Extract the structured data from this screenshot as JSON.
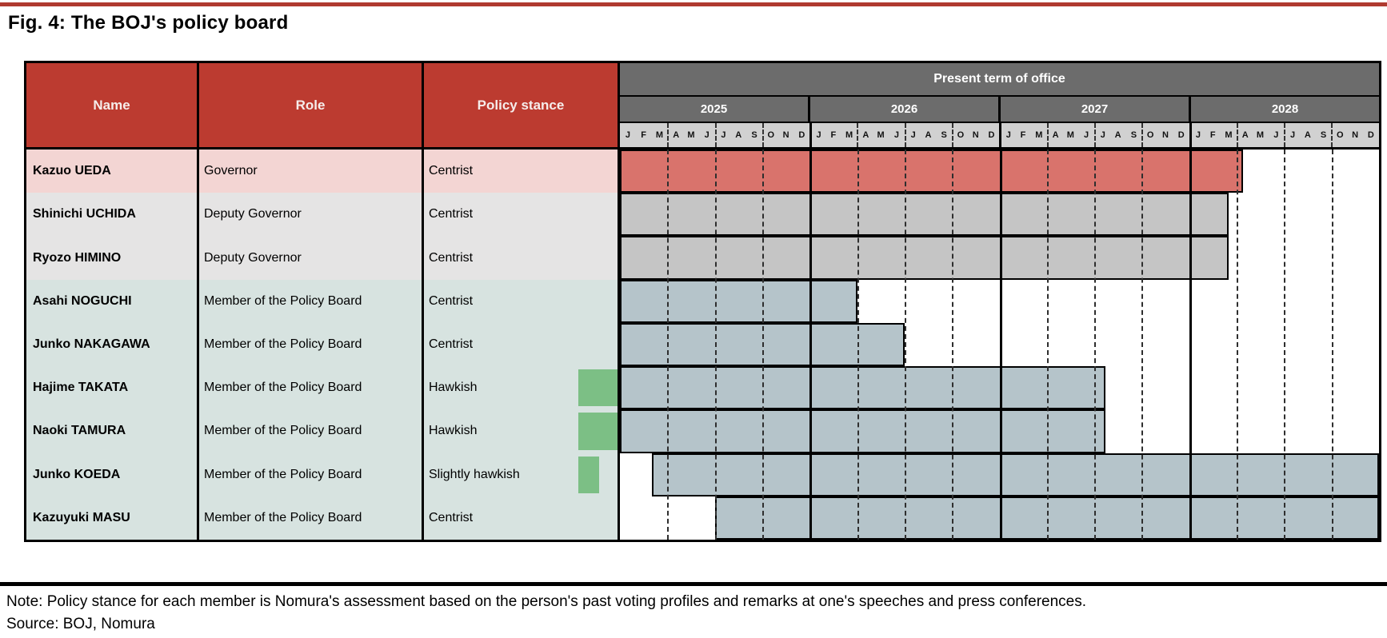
{
  "title": "Fig. 4: The BOJ's policy board",
  "header": {
    "name": "Name",
    "role": "Role",
    "stance": "Policy stance",
    "term": "Present term of office"
  },
  "years": [
    "2025",
    "2026",
    "2027",
    "2028"
  ],
  "month_letters": [
    "J",
    "F",
    "M",
    "A",
    "M",
    "J",
    "J",
    "A",
    "S",
    "O",
    "N",
    "D"
  ],
  "chart_data": {
    "type": "gantt",
    "title": "Present term of office",
    "x_unit": "month",
    "x_range": [
      "Jan 2025",
      "Dec 2028"
    ],
    "x_gridlines": "solid black at year boundaries, dashed at quarter boundaries",
    "rows": [
      {
        "name": "Kazuo UEDA",
        "role": "Governor",
        "stance": "Centrist",
        "bar": {
          "start_month": 0,
          "end_month": 39.4,
          "start_label": "Jan 2025",
          "end_label": "Apr 2028"
        },
        "row_tint": "pink",
        "bar_color": "red",
        "hawk_indicator": 0
      },
      {
        "name": "Shinichi UCHIDA",
        "role": "Deputy Governor",
        "stance": "Centrist",
        "bar": {
          "start_month": 0,
          "end_month": 38.5,
          "start_label": "Jan 2025",
          "end_label": "Mar 2028"
        },
        "row_tint": "gray",
        "bar_color": "gray",
        "hawk_indicator": 0
      },
      {
        "name": "Ryozo HIMINO",
        "role": "Deputy Governor",
        "stance": "Centrist",
        "bar": {
          "start_month": 0,
          "end_month": 38.5,
          "start_label": "Jan 2025",
          "end_label": "Mar 2028"
        },
        "row_tint": "gray",
        "bar_color": "gray",
        "hawk_indicator": 0
      },
      {
        "name": "Asahi NOGUCHI",
        "role": "Member of the Policy Board",
        "stance": "Centrist",
        "bar": {
          "start_month": 0,
          "end_month": 15,
          "start_label": "Jan 2025",
          "end_label": "Mar 2026"
        },
        "row_tint": "teal",
        "bar_color": "bluegray",
        "hawk_indicator": 0
      },
      {
        "name": "Junko NAKAGAWA",
        "role": "Member of the Policy Board",
        "stance": "Centrist",
        "bar": {
          "start_month": 0,
          "end_month": 18,
          "start_label": "Jan 2025",
          "end_label": "Jun 2026"
        },
        "row_tint": "teal",
        "bar_color": "bluegray",
        "hawk_indicator": 0
      },
      {
        "name": "Hajime TAKATA",
        "role": "Member of the Policy Board",
        "stance": "Hawkish",
        "bar": {
          "start_month": 0,
          "end_month": 30.7,
          "start_label": "Jan 2025",
          "end_label": "Jul 2027"
        },
        "row_tint": "teal",
        "bar_color": "bluegray",
        "hawk_indicator": 1
      },
      {
        "name": "Naoki TAMURA",
        "role": "Member of the Policy Board",
        "stance": "Hawkish",
        "bar": {
          "start_month": 0,
          "end_month": 30.7,
          "start_label": "Jan 2025",
          "end_label": "Jul 2027"
        },
        "row_tint": "teal",
        "bar_color": "bluegray",
        "hawk_indicator": 1
      },
      {
        "name": "Junko KOEDA",
        "role": "Member of the Policy Board",
        "stance": "Slightly hawkish",
        "bar": {
          "start_month": 2,
          "end_month": 48,
          "start_label": "Mar 2025",
          "end_label": "beyond Dec 2028"
        },
        "row_tint": "teal",
        "bar_color": "bluegray",
        "hawk_indicator": 0.5
      },
      {
        "name": "Kazuyuki MASU",
        "role": "Member of the Policy Board",
        "stance": "Centrist",
        "bar": {
          "start_month": 6,
          "end_month": 48,
          "start_label": "Jul 2025",
          "end_label": "beyond Dec 2028"
        },
        "row_tint": "teal",
        "bar_color": "bluegray",
        "hawk_indicator": 0
      }
    ]
  },
  "footer": {
    "note": "Note: Policy stance for each member is Nomura's assessment based on the person's past voting profiles and remarks at one's speeches and press conferences.",
    "source": "Source: BOJ, Nomura"
  },
  "colors": {
    "rule_red": "#b03a30",
    "accent_red": "#bc3b30",
    "band_dark": "#6c6c6c",
    "band_light": "#d1d1d1",
    "row_pink": "#f3d5d3",
    "row_gray": "#e5e4e4",
    "row_teal": "#d7e3e0",
    "bar_red": "#d9736c",
    "bar_gray": "#c5c5c5",
    "bar_bluegray": "#b5c4ca",
    "hawk_green": "#7cbf85"
  }
}
